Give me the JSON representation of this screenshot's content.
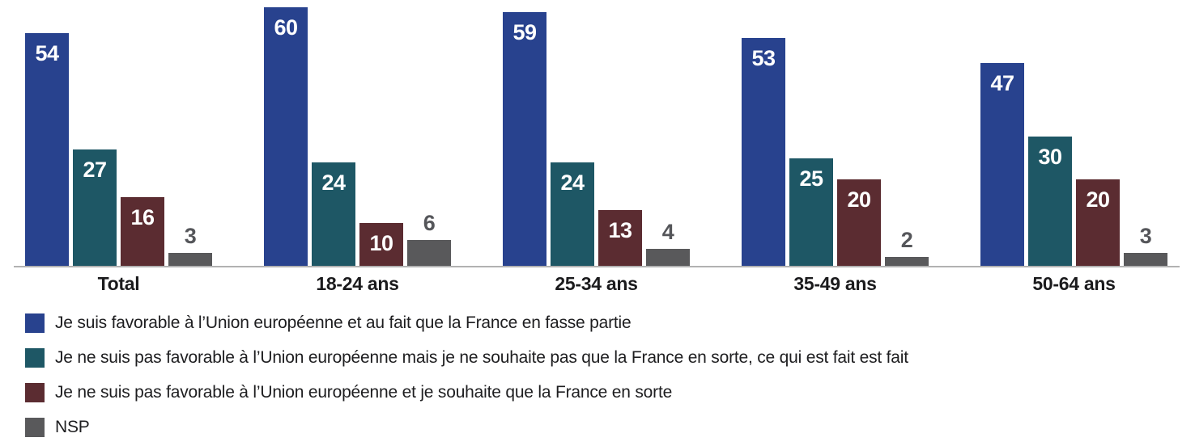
{
  "chart_data": {
    "type": "bar",
    "title": "",
    "xlabel": "",
    "ylabel": "",
    "ylim": [
      0,
      62
    ],
    "grid": false,
    "legend_position": "bottom",
    "categories": [
      "Total",
      "18-24 ans",
      "25-34 ans",
      "35-49 ans",
      "50-64 ans"
    ],
    "series": [
      {
        "name": "Je suis favorable à l’Union européenne et au fait que la France en fasse partie",
        "color": "#28428E",
        "values": [
          54,
          60,
          59,
          53,
          47
        ],
        "label_position": "inside"
      },
      {
        "name": "Je ne suis pas favorable à l’Union européenne mais je ne souhaite pas que la France en sorte, ce qui est fait est fait",
        "color": "#1E5765",
        "values": [
          27,
          24,
          24,
          25,
          30
        ],
        "label_position": "inside"
      },
      {
        "name": "Je ne suis pas favorable à l’Union européenne et je souhaite que la France en sorte",
        "color": "#5B2C31",
        "values": [
          16,
          10,
          13,
          20,
          20
        ],
        "label_position": "inside"
      },
      {
        "name": "NSP",
        "color": "#59595B",
        "values": [
          3,
          6,
          4,
          2,
          3
        ],
        "label_position": "outside"
      }
    ],
    "value_label_color_inside": "#FFFFFF",
    "value_label_color_outside": "#55565A",
    "category_label_color": "#1B1B1D",
    "legend_text_color": "#1E1E20",
    "axis_line_color": "#B2B2B2"
  }
}
